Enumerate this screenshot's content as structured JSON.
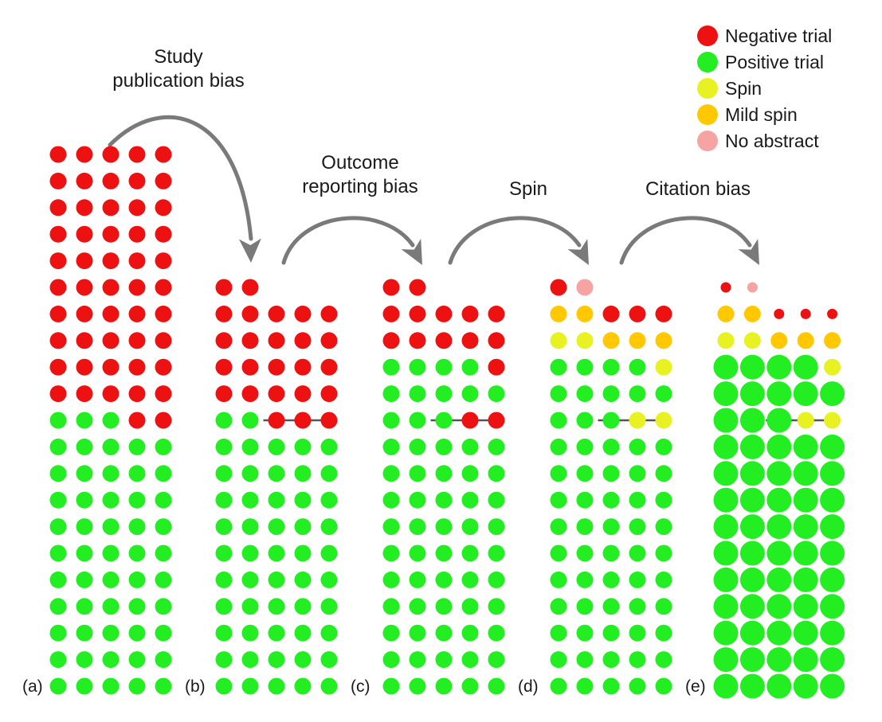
{
  "colors": {
    "negative": "#ee1111",
    "positive": "#22ee22",
    "spin": "#e8f222",
    "mild_spin": "#ffc800",
    "no_abstract": "#f5a3a3",
    "arrow": "#7a7a7a",
    "divider": "#555555"
  },
  "legend": [
    {
      "key": "negative",
      "label": "Negative trial"
    },
    {
      "key": "positive",
      "label": "Positive trial"
    },
    {
      "key": "spin",
      "label": "Spin"
    },
    {
      "key": "mild_spin",
      "label": "Mild spin"
    },
    {
      "key": "no_abstract",
      "label": "No abstract"
    }
  ],
  "stages": [
    {
      "line1": "Study",
      "line2": "publication bias"
    },
    {
      "line1": "Outcome",
      "line2": "reporting bias"
    },
    {
      "line1": "Spin",
      "line2": ""
    },
    {
      "line1": "Citation bias",
      "line2": ""
    }
  ],
  "panels": [
    {
      "label": "(a)",
      "citation_sized": false,
      "rows": [
        "NNNNN",
        "NNNNN",
        "NNNNN",
        "NNNNN",
        "NNNNN",
        "NNNNN",
        "NNNNN",
        "NNNNN",
        "NNNNN",
        "NNNNN",
        "PPPNN",
        "PPPPP",
        "PPPPP",
        "PPPPP",
        "PPPPP",
        "PPPPP",
        "PPPPP",
        "PPPPP",
        "PPPPP",
        "PPPPP",
        "PPPPP"
      ]
    },
    {
      "label": "(b)",
      "citation_sized": false,
      "divider_row": 5,
      "rows": [
        "NN",
        "NNNNN",
        "NNNNN",
        "NNNNN",
        "NNNNN",
        "PPNNN",
        "PPPPP",
        "PPPPP",
        "PPPPP",
        "PPPPP",
        "PPPPP",
        "PPPPP",
        "PPPPP",
        "PPPPP",
        "PPPPP",
        "PPPPP"
      ]
    },
    {
      "label": "(c)",
      "citation_sized": false,
      "divider_row": 5,
      "rows": [
        "NN",
        "NNNNN",
        "NNNNN",
        "PPPPN",
        "PPPPP",
        "PPPNN",
        "PPPPP",
        "PPPPP",
        "PPPPP",
        "PPPPP",
        "PPPPP",
        "PPPPP",
        "PPPPP",
        "PPPPP",
        "PPPPP",
        "PPPPP"
      ]
    },
    {
      "label": "(d)",
      "citation_sized": false,
      "divider_row": 5,
      "rows": [
        "NA",
        "MMNNN",
        "SSMMM",
        "PPPPS",
        "PPPPP",
        "PPPSS",
        "PPPPP",
        "PPPPP",
        "PPPPP",
        "PPPPP",
        "PPPPP",
        "PPPPP",
        "PPPPP",
        "PPPPP",
        "PPPPP",
        "PPPPP"
      ]
    },
    {
      "label": "(e)",
      "citation_sized": true,
      "divider_row": 5,
      "rows": [
        "NA",
        "MMNNN",
        "SSMMM",
        "PPPPS",
        "PPPPP",
        "PPPSS",
        "PPPPP",
        "PPPPP",
        "PPPPP",
        "PPPPP",
        "PPPPP",
        "PPPPP",
        "PPPPP",
        "PPPPP",
        "PPPPP",
        "PPPPP"
      ]
    }
  ]
}
